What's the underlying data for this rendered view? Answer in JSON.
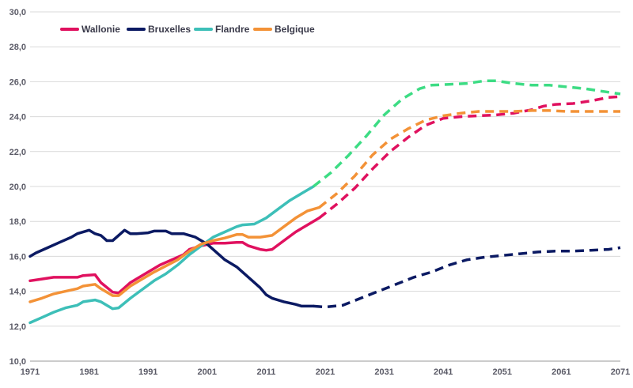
{
  "chart_data": {
    "type": "line",
    "xlim": [
      1971,
      2071
    ],
    "ylim": [
      10,
      30
    ],
    "y_ticks": [
      "10,0",
      "12,0",
      "14,0",
      "16,0",
      "18,0",
      "20,0",
      "22,0",
      "24,0",
      "26,0",
      "28,0",
      "30,0"
    ],
    "x_ticks": [
      "1971",
      "1981",
      "1991",
      "2001",
      "2011",
      "2021",
      "2031",
      "2041",
      "2051",
      "2061",
      "2071"
    ],
    "grid": "horizontal",
    "legend_position": "top-left",
    "series": [
      {
        "name": "Wallonie",
        "color": "#e0115f",
        "observed": [
          [
            1971,
            14.6
          ],
          [
            1973,
            14.7
          ],
          [
            1975,
            14.8
          ],
          [
            1977,
            14.8
          ],
          [
            1979,
            14.8
          ],
          [
            1980,
            14.9
          ],
          [
            1982,
            14.95
          ],
          [
            1983,
            14.5
          ],
          [
            1985,
            13.95
          ],
          [
            1986,
            13.9
          ],
          [
            1987,
            14.2
          ],
          [
            1988,
            14.5
          ],
          [
            1989,
            14.7
          ],
          [
            1991,
            15.1
          ],
          [
            1993,
            15.5
          ],
          [
            1995,
            15.8
          ],
          [
            1997,
            16.1
          ],
          [
            1998,
            16.4
          ],
          [
            2000,
            16.6
          ],
          [
            2002,
            16.75
          ],
          [
            2004,
            16.75
          ],
          [
            2006,
            16.8
          ],
          [
            2007,
            16.8
          ],
          [
            2008,
            16.6
          ],
          [
            2010,
            16.4
          ],
          [
            2011,
            16.35
          ],
          [
            2012,
            16.4
          ],
          [
            2014,
            16.9
          ],
          [
            2016,
            17.4
          ],
          [
            2018,
            17.8
          ],
          [
            2020,
            18.2
          ]
        ],
        "projected": [
          [
            2020,
            18.2
          ],
          [
            2023,
            19.0
          ],
          [
            2026,
            19.9
          ],
          [
            2029,
            21.0
          ],
          [
            2032,
            22.0
          ],
          [
            2035,
            22.8
          ],
          [
            2038,
            23.5
          ],
          [
            2041,
            23.9
          ],
          [
            2044,
            24.0
          ],
          [
            2047,
            24.05
          ],
          [
            2050,
            24.1
          ],
          [
            2053,
            24.2
          ],
          [
            2056,
            24.4
          ],
          [
            2058,
            24.6
          ],
          [
            2060,
            24.7
          ],
          [
            2063,
            24.75
          ],
          [
            2066,
            24.9
          ],
          [
            2069,
            25.1
          ],
          [
            2071,
            25.15
          ]
        ]
      },
      {
        "name": "Bruxelles",
        "color": "#0b1a63",
        "observed": [
          [
            1971,
            16.0
          ],
          [
            1972,
            16.2
          ],
          [
            1974,
            16.5
          ],
          [
            1976,
            16.8
          ],
          [
            1978,
            17.1
          ],
          [
            1979,
            17.3
          ],
          [
            1981,
            17.5
          ],
          [
            1982,
            17.3
          ],
          [
            1983,
            17.2
          ],
          [
            1984,
            16.9
          ],
          [
            1985,
            16.9
          ],
          [
            1987,
            17.5
          ],
          [
            1988,
            17.3
          ],
          [
            1989,
            17.3
          ],
          [
            1991,
            17.35
          ],
          [
            1992,
            17.45
          ],
          [
            1994,
            17.45
          ],
          [
            1995,
            17.3
          ],
          [
            1997,
            17.3
          ],
          [
            1999,
            17.1
          ],
          [
            2001,
            16.7
          ],
          [
            2002,
            16.4
          ],
          [
            2004,
            15.8
          ],
          [
            2006,
            15.4
          ],
          [
            2008,
            14.8
          ],
          [
            2010,
            14.2
          ],
          [
            2011,
            13.8
          ],
          [
            2012,
            13.6
          ],
          [
            2014,
            13.4
          ],
          [
            2016,
            13.25
          ],
          [
            2017,
            13.15
          ],
          [
            2019,
            13.15
          ]
        ],
        "projected": [
          [
            2019,
            13.15
          ],
          [
            2021,
            13.1
          ],
          [
            2024,
            13.2
          ],
          [
            2027,
            13.6
          ],
          [
            2030,
            14.0
          ],
          [
            2033,
            14.4
          ],
          [
            2036,
            14.8
          ],
          [
            2039,
            15.1
          ],
          [
            2042,
            15.5
          ],
          [
            2045,
            15.8
          ],
          [
            2048,
            15.95
          ],
          [
            2051,
            16.05
          ],
          [
            2054,
            16.15
          ],
          [
            2057,
            16.25
          ],
          [
            2060,
            16.3
          ],
          [
            2063,
            16.3
          ],
          [
            2066,
            16.35
          ],
          [
            2069,
            16.4
          ],
          [
            2071,
            16.5
          ]
        ]
      },
      {
        "name": "Flandre",
        "color": "#3dbfb8",
        "projected_color": "#3ddc84",
        "observed": [
          [
            1971,
            12.2
          ],
          [
            1973,
            12.5
          ],
          [
            1975,
            12.8
          ],
          [
            1977,
            13.05
          ],
          [
            1979,
            13.2
          ],
          [
            1980,
            13.4
          ],
          [
            1982,
            13.5
          ],
          [
            1983,
            13.4
          ],
          [
            1985,
            13.0
          ],
          [
            1986,
            13.05
          ],
          [
            1988,
            13.6
          ],
          [
            1990,
            14.1
          ],
          [
            1992,
            14.6
          ],
          [
            1994,
            15.0
          ],
          [
            1996,
            15.5
          ],
          [
            1998,
            16.1
          ],
          [
            2000,
            16.6
          ],
          [
            2002,
            17.1
          ],
          [
            2004,
            17.4
          ],
          [
            2006,
            17.7
          ],
          [
            2007,
            17.8
          ],
          [
            2009,
            17.85
          ],
          [
            2011,
            18.2
          ],
          [
            2013,
            18.7
          ],
          [
            2015,
            19.2
          ],
          [
            2017,
            19.6
          ],
          [
            2019,
            20.0
          ]
        ],
        "projected": [
          [
            2019,
            20.0
          ],
          [
            2022,
            20.8
          ],
          [
            2025,
            21.8
          ],
          [
            2028,
            22.9
          ],
          [
            2031,
            24.1
          ],
          [
            2034,
            25.0
          ],
          [
            2037,
            25.6
          ],
          [
            2039,
            25.8
          ],
          [
            2042,
            25.85
          ],
          [
            2045,
            25.9
          ],
          [
            2048,
            26.05
          ],
          [
            2050,
            26.05
          ],
          [
            2053,
            25.9
          ],
          [
            2056,
            25.8
          ],
          [
            2059,
            25.8
          ],
          [
            2062,
            25.7
          ],
          [
            2065,
            25.6
          ],
          [
            2068,
            25.45
          ],
          [
            2071,
            25.3
          ]
        ]
      },
      {
        "name": "Belgique",
        "color": "#f39237",
        "observed": [
          [
            1971,
            13.4
          ],
          [
            1973,
            13.6
          ],
          [
            1975,
            13.85
          ],
          [
            1977,
            14.0
          ],
          [
            1979,
            14.15
          ],
          [
            1980,
            14.3
          ],
          [
            1982,
            14.4
          ],
          [
            1983,
            14.15
          ],
          [
            1985,
            13.75
          ],
          [
            1986,
            13.75
          ],
          [
            1988,
            14.3
          ],
          [
            1990,
            14.7
          ],
          [
            1992,
            15.1
          ],
          [
            1994,
            15.45
          ],
          [
            1996,
            15.8
          ],
          [
            1998,
            16.3
          ],
          [
            2000,
            16.7
          ],
          [
            2002,
            16.9
          ],
          [
            2004,
            17.05
          ],
          [
            2006,
            17.25
          ],
          [
            2007,
            17.25
          ],
          [
            2008,
            17.1
          ],
          [
            2010,
            17.1
          ],
          [
            2012,
            17.2
          ],
          [
            2014,
            17.7
          ],
          [
            2016,
            18.2
          ],
          [
            2018,
            18.6
          ],
          [
            2020,
            18.8
          ]
        ],
        "projected": [
          [
            2020,
            18.8
          ],
          [
            2023,
            19.6
          ],
          [
            2026,
            20.6
          ],
          [
            2029,
            21.8
          ],
          [
            2032,
            22.7
          ],
          [
            2035,
            23.3
          ],
          [
            2038,
            23.8
          ],
          [
            2041,
            24.05
          ],
          [
            2044,
            24.2
          ],
          [
            2047,
            24.3
          ],
          [
            2050,
            24.3
          ],
          [
            2053,
            24.3
          ],
          [
            2056,
            24.35
          ],
          [
            2059,
            24.35
          ],
          [
            2062,
            24.3
          ],
          [
            2065,
            24.3
          ],
          [
            2068,
            24.3
          ],
          [
            2071,
            24.3
          ]
        ]
      }
    ]
  }
}
